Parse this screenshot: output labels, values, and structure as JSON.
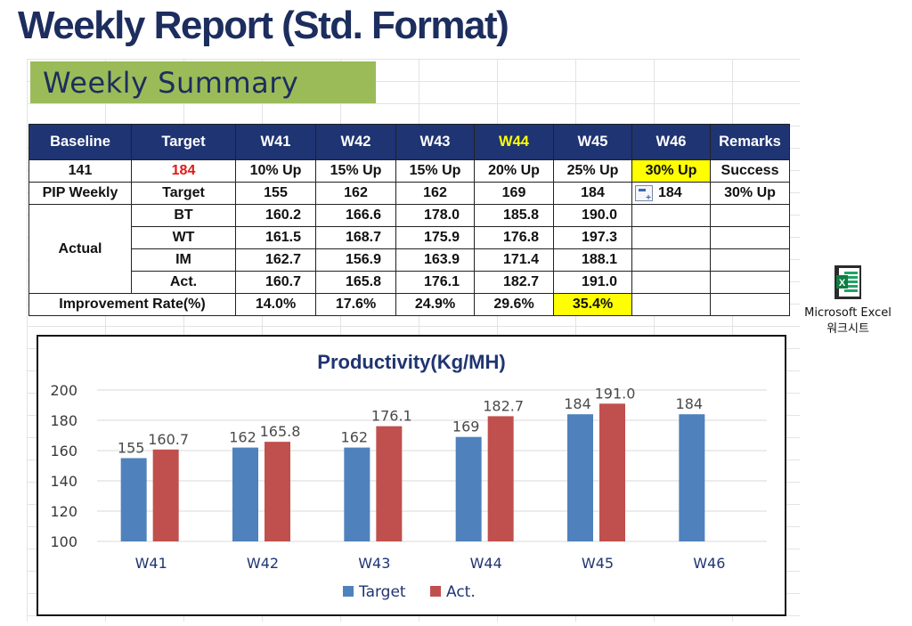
{
  "page_title": "Weekly Report (Std. Format)",
  "summary_title": "Weekly Summary",
  "table": {
    "headers": [
      "Baseline",
      "Target",
      "W41",
      "W42",
      "W43",
      "W44",
      "W45",
      "W46",
      "Remarks"
    ],
    "baseline_row": [
      "141",
      "184",
      "10% Up",
      "15% Up",
      "15% Up",
      "20% Up",
      "25% Up",
      "30% Up",
      "Success"
    ],
    "pip_row": {
      "label": "PIP Weekly",
      "sub": "Target",
      "values": [
        "155",
        "162",
        "162",
        "169",
        "184",
        "184"
      ],
      "remark": "30% Up"
    },
    "actual_label": "Actual",
    "actual_rows": [
      {
        "label": "BT",
        "values": [
          "160.2",
          "166.6",
          "178.0",
          "185.8",
          "190.0"
        ]
      },
      {
        "label": "WT",
        "values": [
          "161.5",
          "168.7",
          "175.9",
          "176.8",
          "197.3"
        ]
      },
      {
        "label": "IM",
        "values": [
          "162.7",
          "156.9",
          "163.9",
          "171.4",
          "188.1"
        ]
      },
      {
        "label": "Act.",
        "values": [
          "160.7",
          "165.8",
          "176.1",
          "182.7",
          "191.0"
        ]
      }
    ],
    "improvement": {
      "label": "Improvement Rate(%)",
      "values": [
        "14.0%",
        "17.6%",
        "24.9%",
        "29.6%",
        "35.4%"
      ]
    }
  },
  "chart_data": {
    "type": "bar",
    "title": "Productivity(Kg/MH)",
    "categories": [
      "W41",
      "W42",
      "W43",
      "W44",
      "W45",
      "W46"
    ],
    "series": [
      {
        "name": "Target",
        "values": [
          155,
          162,
          162,
          169,
          184,
          184
        ],
        "labels": [
          "155",
          "162",
          "162",
          "169",
          "184",
          "184"
        ],
        "color": "#4f81bd"
      },
      {
        "name": "Act.",
        "values": [
          160.7,
          165.8,
          176.1,
          182.7,
          191.0,
          null
        ],
        "labels": [
          "160.7",
          "165.8",
          "176.1",
          "182.7",
          "191.0",
          ""
        ],
        "color": "#c0504d"
      }
    ],
    "ylim": [
      100,
      200
    ],
    "yticks": [
      "100",
      "120",
      "140",
      "160",
      "180",
      "200"
    ],
    "grid": true,
    "legend": "bottom",
    "xlabel": "",
    "ylabel": ""
  },
  "excel_object": {
    "line1": "Microsoft Excel",
    "line2": "워크시트"
  },
  "colors": {
    "header_bg": "#1f3472",
    "banner_bg": "#9bbb59",
    "highlight": "#ffff00",
    "target_red": "#e0191b",
    "title_navy": "#1c2d5e"
  }
}
